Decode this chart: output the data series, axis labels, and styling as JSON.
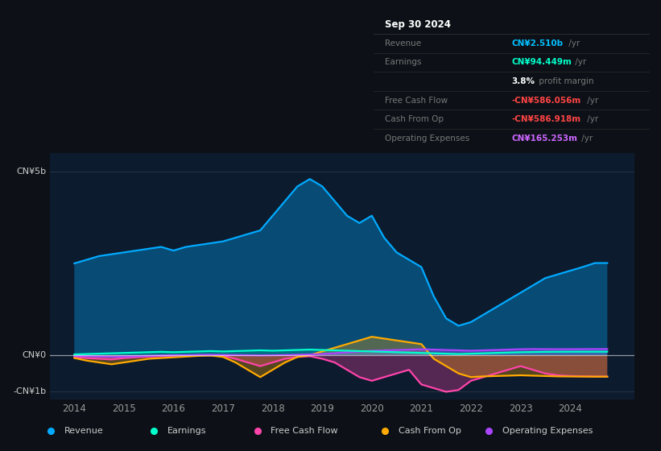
{
  "bg_color": "#0d1117",
  "plot_bg_color": "#0d1b2e",
  "xlim": [
    2013.5,
    2025.3
  ],
  "ylim": [
    -1200,
    5500
  ],
  "xticks": [
    2014,
    2015,
    2016,
    2017,
    2018,
    2019,
    2020,
    2021,
    2022,
    2023,
    2024
  ],
  "ytick_positions": [
    5000,
    0,
    -1000
  ],
  "ytick_labels": [
    "CN¥5b",
    "CN¥0",
    "-CN¥1b"
  ],
  "series": {
    "revenue": {
      "color": "#00aaff",
      "fill_alpha": 0.35,
      "label": "Revenue"
    },
    "earnings": {
      "color": "#00ffcc",
      "fill_alpha": 0.18,
      "label": "Earnings"
    },
    "fcf": {
      "color": "#ff44aa",
      "fill_alpha": 0.3,
      "label": "Free Cash Flow"
    },
    "cashop": {
      "color": "#ffaa00",
      "fill_alpha": 0.3,
      "label": "Cash From Op"
    },
    "opex": {
      "color": "#aa44ff",
      "fill_alpha": 0.35,
      "label": "Operating Expenses"
    }
  },
  "legend_bg": "#1a2535",
  "legend_border": "#2a3545",
  "info_rows": [
    {
      "label": "Sep 30 2024",
      "value": "",
      "val_color": "#ffffff",
      "header": true
    },
    {
      "label": "Revenue",
      "value": "CN¥2.510b",
      "val_color": "#00bfff",
      "header": false,
      "suffix": " /yr"
    },
    {
      "label": "Earnings",
      "value": "CN¥94.449m",
      "val_color": "#00ffcc",
      "header": false,
      "suffix": " /yr"
    },
    {
      "label": "",
      "value": "3.8%",
      "val_color": "#ffffff",
      "header": false,
      "suffix": " profit margin",
      "bold_val": true
    },
    {
      "label": "Free Cash Flow",
      "value": "-CN¥586.056m",
      "val_color": "#ff4444",
      "header": false,
      "suffix": " /yr"
    },
    {
      "label": "Cash From Op",
      "value": "-CN¥586.918m",
      "val_color": "#ff4444",
      "header": false,
      "suffix": " /yr"
    },
    {
      "label": "Operating Expenses",
      "value": "CN¥165.253m",
      "val_color": "#cc66ff",
      "header": false,
      "suffix": " /yr"
    }
  ]
}
